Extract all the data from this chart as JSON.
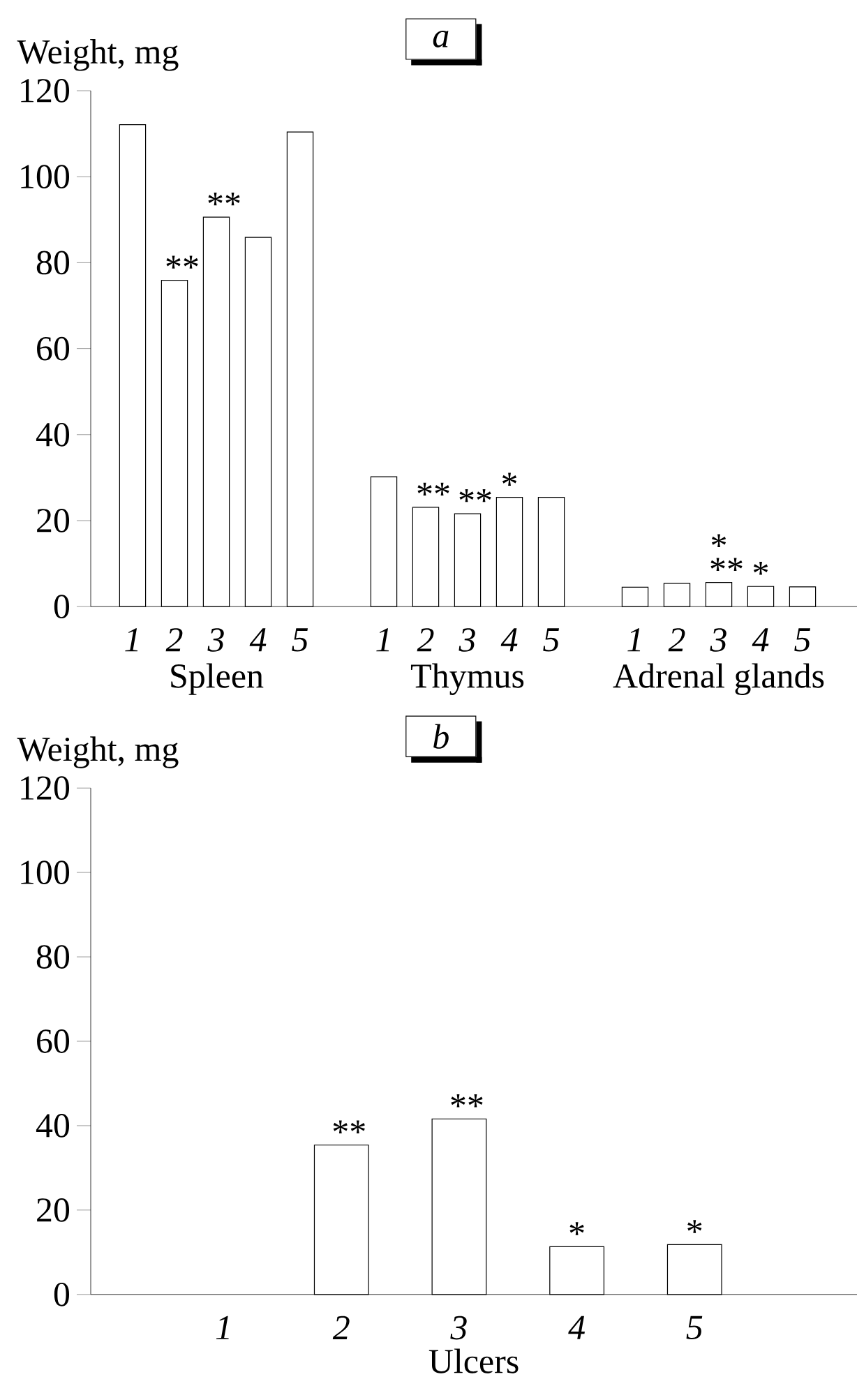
{
  "chart_data": [
    {
      "type": "bar",
      "title": "a",
      "ylabel": "Weight, mg",
      "categories": [
        "1",
        "2",
        "3",
        "4",
        "5",
        null,
        "1",
        "2",
        "3",
        "4",
        "5",
        null,
        "1",
        "2",
        "3",
        "4",
        "5"
      ],
      "values": [
        112.1,
        75.9,
        90.6,
        85.9,
        110.4,
        null,
        30.2,
        23.1,
        21.6,
        25.4,
        25.4,
        null,
        4.5,
        5.4,
        5.6,
        4.7,
        4.6
      ],
      "value_labels": [
        null,
        "**",
        "**",
        null,
        null,
        null,
        null,
        "**",
        "**",
        "*",
        null,
        null,
        null,
        null,
        "* **",
        "*",
        null
      ],
      "annotations": [
        "Spleen",
        "Thymus",
        "Adrenal glands"
      ],
      "color": "#ffffff",
      "ylim": [
        0,
        120
      ],
      "yticks": [
        0,
        20,
        40,
        60,
        80,
        100,
        120
      ]
    },
    {
      "type": "bar",
      "title": "b",
      "ylabel": "Weight, mg",
      "xlabel": "Ulcers",
      "categories": [
        "1",
        "2",
        "3",
        "4",
        "5"
      ],
      "values": [
        null,
        35.4,
        41.6,
        11.3,
        11.8
      ],
      "value_labels": [
        null,
        "**",
        "**",
        "*",
        "*"
      ],
      "color": "#ffffff",
      "ylim": [
        0,
        120
      ],
      "yticks": [
        0,
        20,
        40,
        60,
        80,
        100,
        120
      ]
    }
  ]
}
